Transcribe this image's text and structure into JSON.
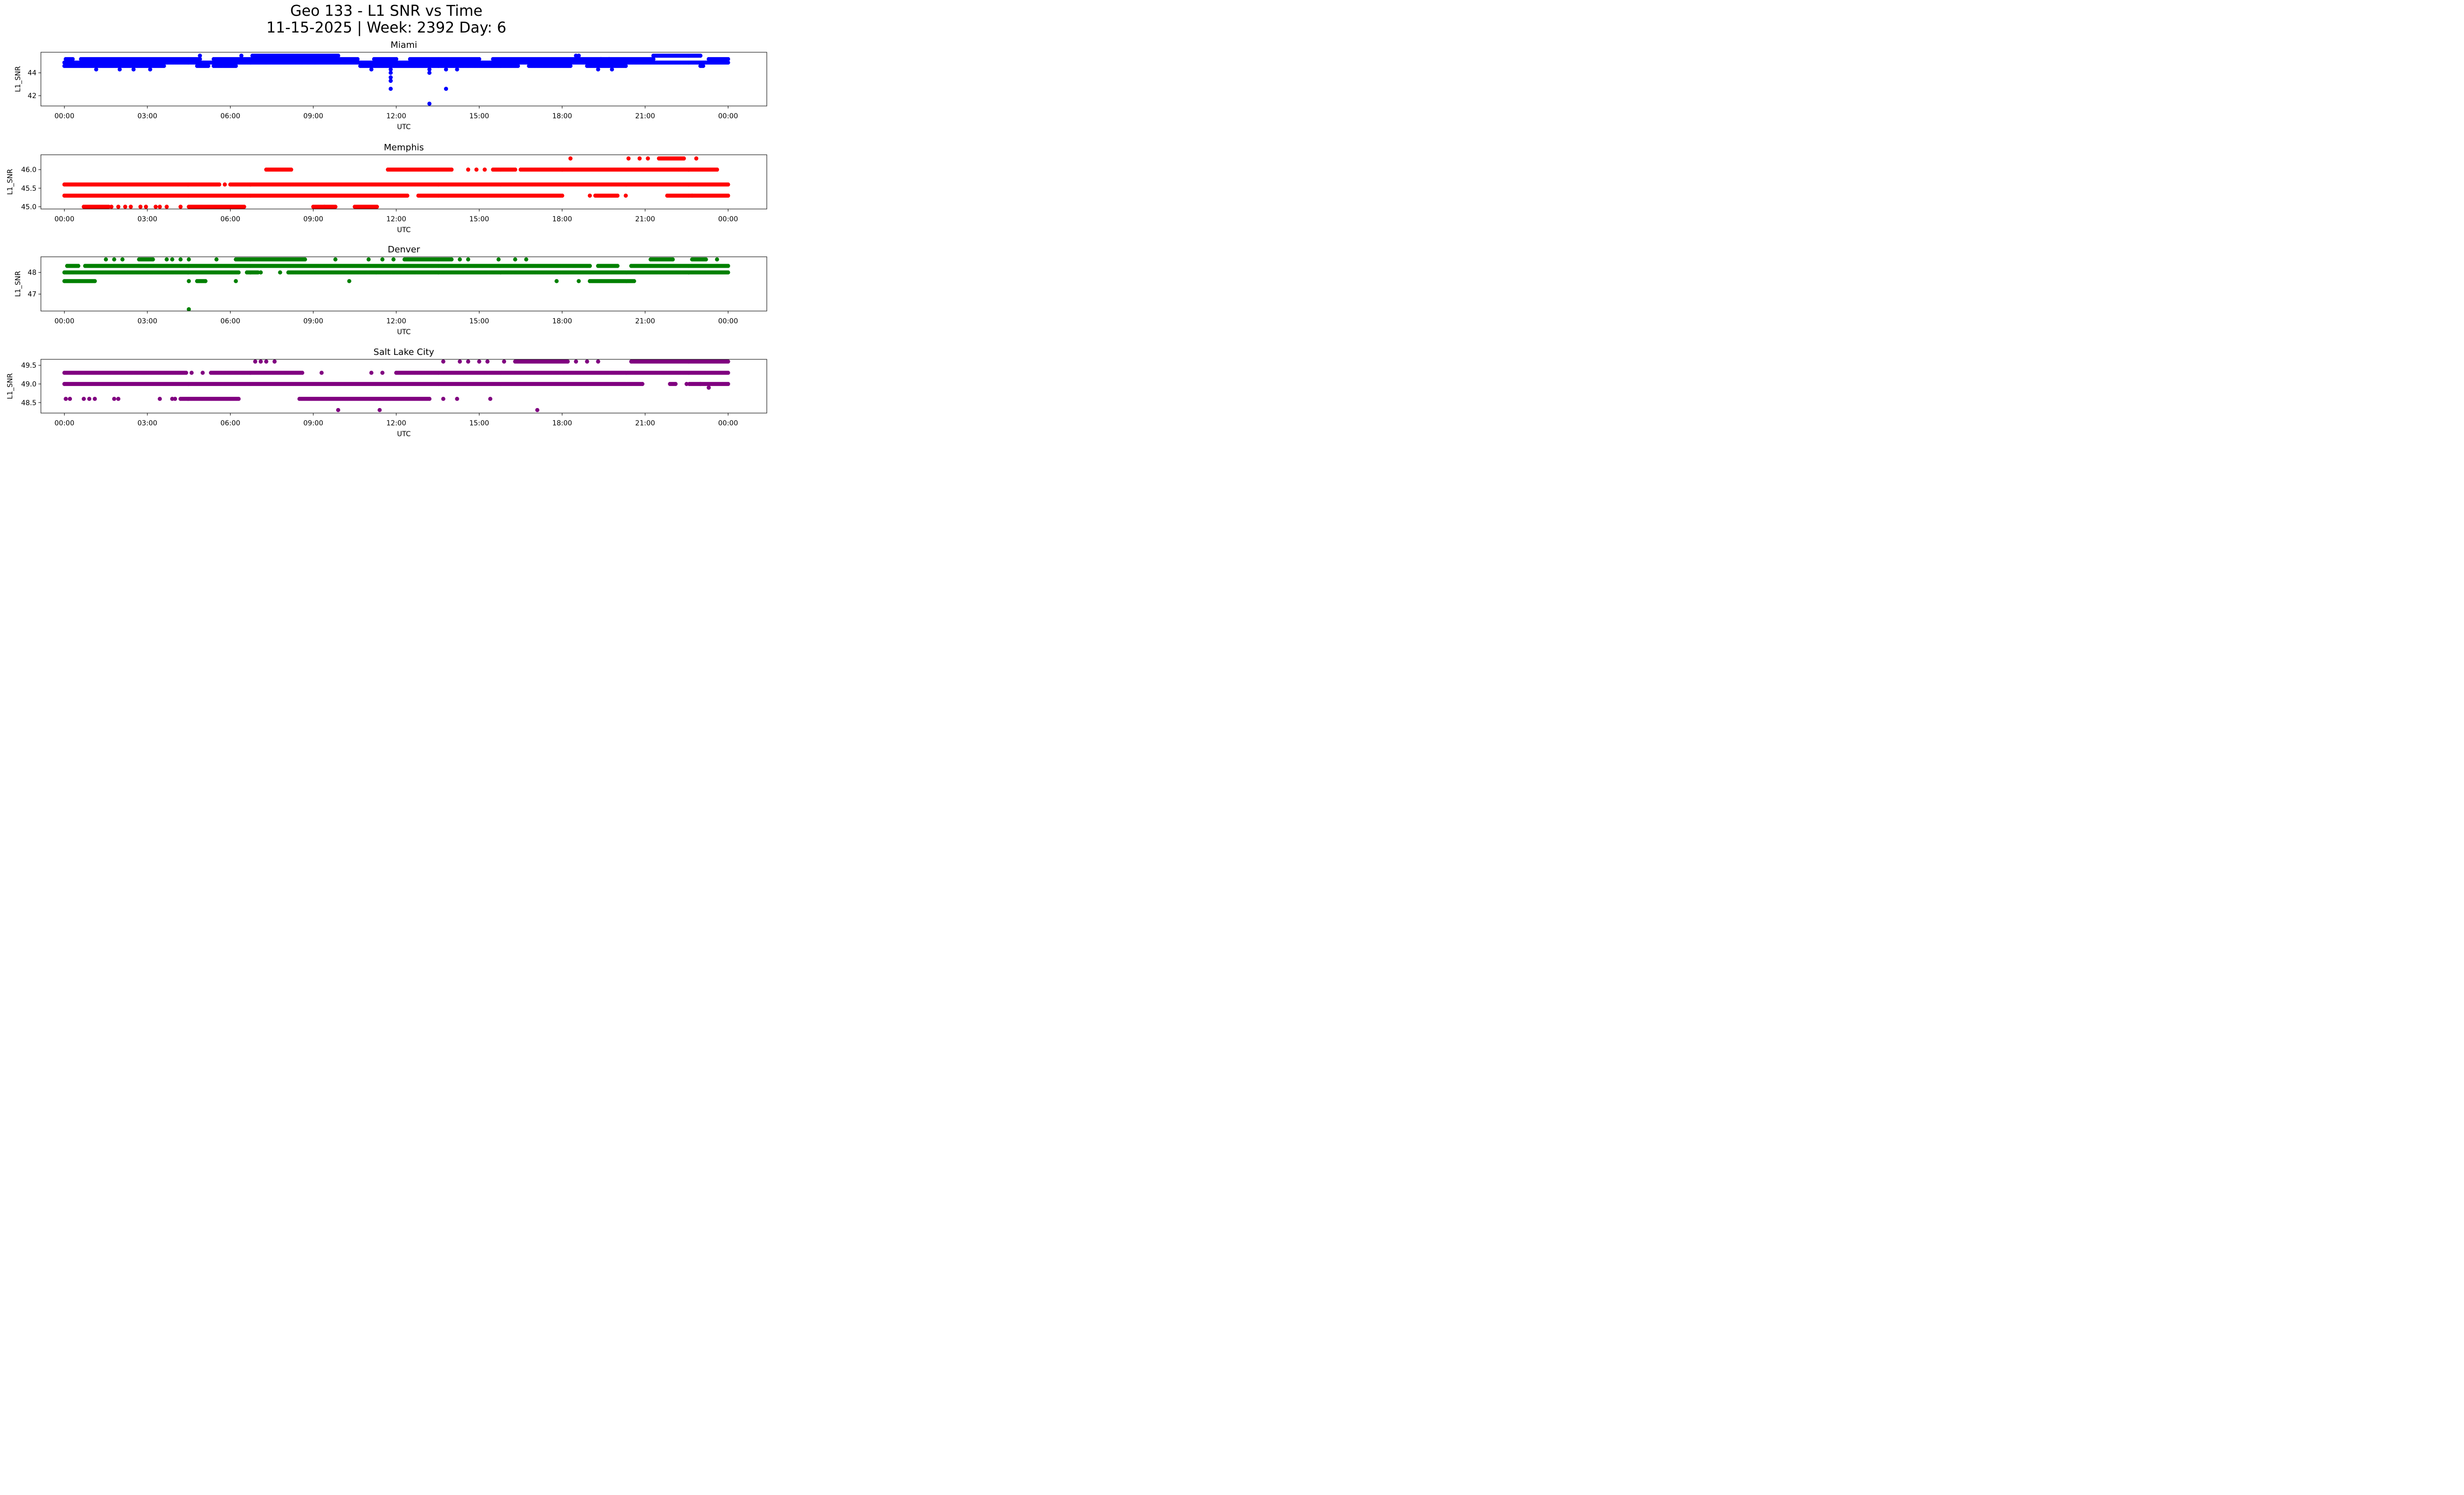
{
  "figure": {
    "title_line1": "Geo 133 - L1 SNR vs Time",
    "title_line2": "11-15-2025 | Week: 2392 Day: 6"
  },
  "chart_data": [
    {
      "type": "scatter",
      "title": "Miami",
      "color": "#0000ff",
      "xlabel": "UTC",
      "ylabel": "L1_SNR",
      "xlim_hours": [
        -0.85,
        25.4
      ],
      "ylim": [
        41.1,
        45.8
      ],
      "xticks": [
        "00:00",
        "03:00",
        "06:00",
        "09:00",
        "12:00",
        "15:00",
        "18:00",
        "21:00",
        "00:00"
      ],
      "xtick_hours": [
        0,
        3,
        6,
        9,
        12,
        15,
        18,
        21,
        24
      ],
      "yticks": [
        42,
        44
      ],
      "ytick_labels": [
        "42",
        "44"
      ],
      "runs": [
        {
          "y": 44.6,
          "segments": [
            [
              0,
              3.6
            ],
            [
              4.8,
              5.2
            ],
            [
              5.4,
              6.2
            ],
            [
              10.7,
              16.4
            ],
            [
              16.8,
              18.3
            ],
            [
              18.9,
              20.3
            ],
            [
              23.0,
              23.1
            ]
          ]
        },
        {
          "y": 44.9,
          "segments": [
            [
              0,
              24.0
            ]
          ]
        },
        {
          "y": 45.2,
          "segments": [
            [
              0.05,
              0.3
            ],
            [
              0.6,
              4.9
            ],
            [
              5.4,
              10.6
            ],
            [
              11.2,
              12.0
            ],
            [
              12.5,
              15.0
            ],
            [
              15.5,
              21.3
            ],
            [
              23.3,
              24.0
            ]
          ]
        },
        {
          "y": 45.5,
          "segments": [
            [
              6.8,
              9.9
            ],
            [
              21.3,
              23.0
            ]
          ]
        }
      ],
      "points": [
        [
          1.15,
          44.3
        ],
        [
          2.0,
          44.3
        ],
        [
          2.5,
          44.3
        ],
        [
          3.1,
          44.3
        ],
        [
          4.9,
          45.5
        ],
        [
          6.4,
          45.5
        ],
        [
          11.1,
          44.3
        ],
        [
          11.8,
          44.3
        ],
        [
          11.8,
          44.0
        ],
        [
          11.8,
          43.6
        ],
        [
          11.8,
          43.3
        ],
        [
          11.8,
          42.6
        ],
        [
          13.2,
          44.3
        ],
        [
          13.2,
          44.0
        ],
        [
          13.8,
          44.3
        ],
        [
          14.2,
          44.3
        ],
        [
          13.8,
          42.6
        ],
        [
          13.2,
          41.3
        ],
        [
          18.5,
          45.5
        ],
        [
          18.6,
          45.5
        ],
        [
          19.3,
          44.3
        ],
        [
          19.8,
          44.3
        ],
        [
          19.4,
          45.2
        ],
        [
          19.7,
          45.2
        ]
      ]
    },
    {
      "type": "scatter",
      "title": "Memphis",
      "color": "#ff0000",
      "xlabel": "UTC",
      "ylabel": "L1_SNR",
      "xlim_hours": [
        -0.85,
        25.4
      ],
      "ylim": [
        44.94,
        46.4
      ],
      "xticks": [
        "00:00",
        "03:00",
        "06:00",
        "09:00",
        "12:00",
        "15:00",
        "18:00",
        "21:00",
        "00:00"
      ],
      "xtick_hours": [
        0,
        3,
        6,
        9,
        12,
        15,
        18,
        21,
        24
      ],
      "yticks": [
        45.0,
        45.5,
        46.0
      ],
      "ytick_labels": [
        "45.0",
        "45.5",
        "46.0"
      ],
      "runs": [
        {
          "y": 45.0,
          "segments": [
            [
              0.7,
              1.6
            ],
            [
              4.5,
              6.5
            ],
            [
              9.0,
              9.8
            ],
            [
              10.5,
              11.3
            ]
          ]
        },
        {
          "y": 45.3,
          "segments": [
            [
              0,
              12.4
            ],
            [
              12.8,
              18.0
            ],
            [
              19.2,
              20.0
            ],
            [
              21.8,
              24.0
            ]
          ]
        },
        {
          "y": 45.6,
          "segments": [
            [
              0,
              5.6
            ],
            [
              6.0,
              24.0
            ]
          ]
        },
        {
          "y": 46.0,
          "segments": [
            [
              7.3,
              8.2
            ],
            [
              11.7,
              14.0
            ],
            [
              15.5,
              16.3
            ],
            [
              16.5,
              18.0
            ],
            [
              18.0,
              23.6
            ]
          ]
        },
        {
          "y": 46.3,
          "segments": [
            [
              21.5,
              22.4
            ]
          ]
        }
      ],
      "points": [
        [
          1.7,
          45.0
        ],
        [
          1.95,
          45.0
        ],
        [
          2.2,
          45.0
        ],
        [
          2.4,
          45.0
        ],
        [
          2.75,
          45.0
        ],
        [
          2.95,
          45.0
        ],
        [
          3.3,
          45.0
        ],
        [
          3.45,
          45.0
        ],
        [
          3.7,
          45.0
        ],
        [
          4.2,
          45.0
        ],
        [
          9.4,
          45.0
        ],
        [
          14.6,
          46.0
        ],
        [
          14.9,
          46.0
        ],
        [
          15.2,
          46.0
        ],
        [
          18.3,
          46.3
        ],
        [
          20.4,
          46.3
        ],
        [
          20.8,
          46.3
        ],
        [
          21.1,
          46.3
        ],
        [
          22.85,
          46.3
        ],
        [
          20.3,
          45.3
        ],
        [
          19.0,
          45.3
        ],
        [
          22.7,
          45.3
        ],
        [
          5.8,
          45.6
        ]
      ]
    },
    {
      "type": "scatter",
      "title": "Denver",
      "color": "#008000",
      "xlabel": "UTC",
      "ylabel": "L1_SNR",
      "xlim_hours": [
        -0.85,
        25.4
      ],
      "ylim": [
        46.22,
        48.72
      ],
      "xticks": [
        "00:00",
        "03:00",
        "06:00",
        "09:00",
        "12:00",
        "15:00",
        "18:00",
        "21:00",
        "00:00"
      ],
      "xtick_hours": [
        0,
        3,
        6,
        9,
        12,
        15,
        18,
        21,
        24
      ],
      "yticks": [
        47,
        48
      ],
      "ytick_labels": [
        "47",
        "48"
      ],
      "runs": [
        {
          "y": 47.6,
          "segments": [
            [
              0,
              1.1
            ],
            [
              4.8,
              5.1
            ],
            [
              19.0,
              20.6
            ]
          ]
        },
        {
          "y": 48.0,
          "segments": [
            [
              0,
              6.3
            ],
            [
              6.6,
              7.0
            ],
            [
              8.1,
              24.0
            ]
          ]
        },
        {
          "y": 48.3,
          "segments": [
            [
              0.1,
              0.5
            ],
            [
              0.75,
              19.0
            ],
            [
              19.3,
              20.0
            ],
            [
              20.5,
              24.0
            ]
          ]
        },
        {
          "y": 48.6,
          "segments": [
            [
              2.7,
              3.2
            ],
            [
              6.2,
              8.7
            ],
            [
              12.3,
              14.0
            ],
            [
              21.2,
              22.0
            ],
            [
              22.7,
              23.2
            ]
          ]
        }
      ],
      "points": [
        [
          1.5,
          48.6
        ],
        [
          1.8,
          48.6
        ],
        [
          2.1,
          48.6
        ],
        [
          3.7,
          48.6
        ],
        [
          3.9,
          48.6
        ],
        [
          4.2,
          48.6
        ],
        [
          4.5,
          48.6
        ],
        [
          5.5,
          48.6
        ],
        [
          9.8,
          48.6
        ],
        [
          11.0,
          48.6
        ],
        [
          11.5,
          48.6
        ],
        [
          11.9,
          48.6
        ],
        [
          14.3,
          48.6
        ],
        [
          14.6,
          48.6
        ],
        [
          15.7,
          48.6
        ],
        [
          16.3,
          48.6
        ],
        [
          16.7,
          48.6
        ],
        [
          23.6,
          48.6
        ],
        [
          4.5,
          47.6
        ],
        [
          6.2,
          47.6
        ],
        [
          10.3,
          47.6
        ],
        [
          17.8,
          47.6
        ],
        [
          18.6,
          47.6
        ],
        [
          4.5,
          46.3
        ],
        [
          7.1,
          48.0
        ],
        [
          7.8,
          48.0
        ]
      ]
    },
    {
      "type": "scatter",
      "title": "Salt Lake City",
      "color": "#800080",
      "xlabel": "UTC",
      "ylabel": "L1_SNR",
      "xlim_hours": [
        -0.85,
        25.4
      ],
      "ylim": [
        48.22,
        49.66
      ],
      "xticks": [
        "00:00",
        "03:00",
        "06:00",
        "09:00",
        "12:00",
        "15:00",
        "18:00",
        "21:00",
        "00:00"
      ],
      "xtick_hours": [
        0,
        3,
        6,
        9,
        12,
        15,
        18,
        21,
        24
      ],
      "yticks": [
        48.5,
        49.0,
        49.5
      ],
      "ytick_labels": [
        "48.5",
        "49.0",
        "49.5"
      ],
      "runs": [
        {
          "y": 48.6,
          "segments": [
            [
              4.2,
              6.3
            ],
            [
              8.5,
              13.2
            ]
          ]
        },
        {
          "y": 49.0,
          "segments": [
            [
              0,
              20.9
            ],
            [
              21.9,
              22.1
            ],
            [
              22.6,
              24.0
            ]
          ]
        },
        {
          "y": 49.3,
          "segments": [
            [
              0,
              4.4
            ],
            [
              5.3,
              8.6
            ],
            [
              12.0,
              24.0
            ]
          ]
        },
        {
          "y": 49.6,
          "segments": [
            [
              16.3,
              18.2
            ],
            [
              20.5,
              24.0
            ]
          ]
        }
      ],
      "points": [
        [
          0.05,
          48.6
        ],
        [
          0.2,
          48.6
        ],
        [
          0.7,
          48.6
        ],
        [
          0.9,
          48.6
        ],
        [
          1.1,
          48.6
        ],
        [
          1.8,
          48.6
        ],
        [
          1.95,
          48.6
        ],
        [
          3.45,
          48.6
        ],
        [
          3.9,
          48.6
        ],
        [
          4.0,
          48.6
        ],
        [
          13.7,
          48.6
        ],
        [
          14.2,
          48.6
        ],
        [
          15.4,
          48.6
        ],
        [
          9.9,
          48.3
        ],
        [
          11.4,
          48.3
        ],
        [
          17.1,
          48.3
        ],
        [
          4.6,
          49.3
        ],
        [
          5.0,
          49.3
        ],
        [
          9.3,
          49.3
        ],
        [
          11.1,
          49.3
        ],
        [
          11.5,
          49.3
        ],
        [
          6.9,
          49.6
        ],
        [
          7.1,
          49.6
        ],
        [
          7.3,
          49.6
        ],
        [
          7.6,
          49.6
        ],
        [
          13.7,
          49.6
        ],
        [
          14.3,
          49.6
        ],
        [
          14.6,
          49.6
        ],
        [
          15.0,
          49.6
        ],
        [
          15.3,
          49.6
        ],
        [
          15.9,
          49.6
        ],
        [
          18.5,
          49.6
        ],
        [
          18.9,
          49.6
        ],
        [
          19.3,
          49.6
        ],
        [
          23.3,
          48.9
        ],
        [
          23.0,
          49.0
        ],
        [
          22.5,
          49.0
        ]
      ]
    }
  ]
}
